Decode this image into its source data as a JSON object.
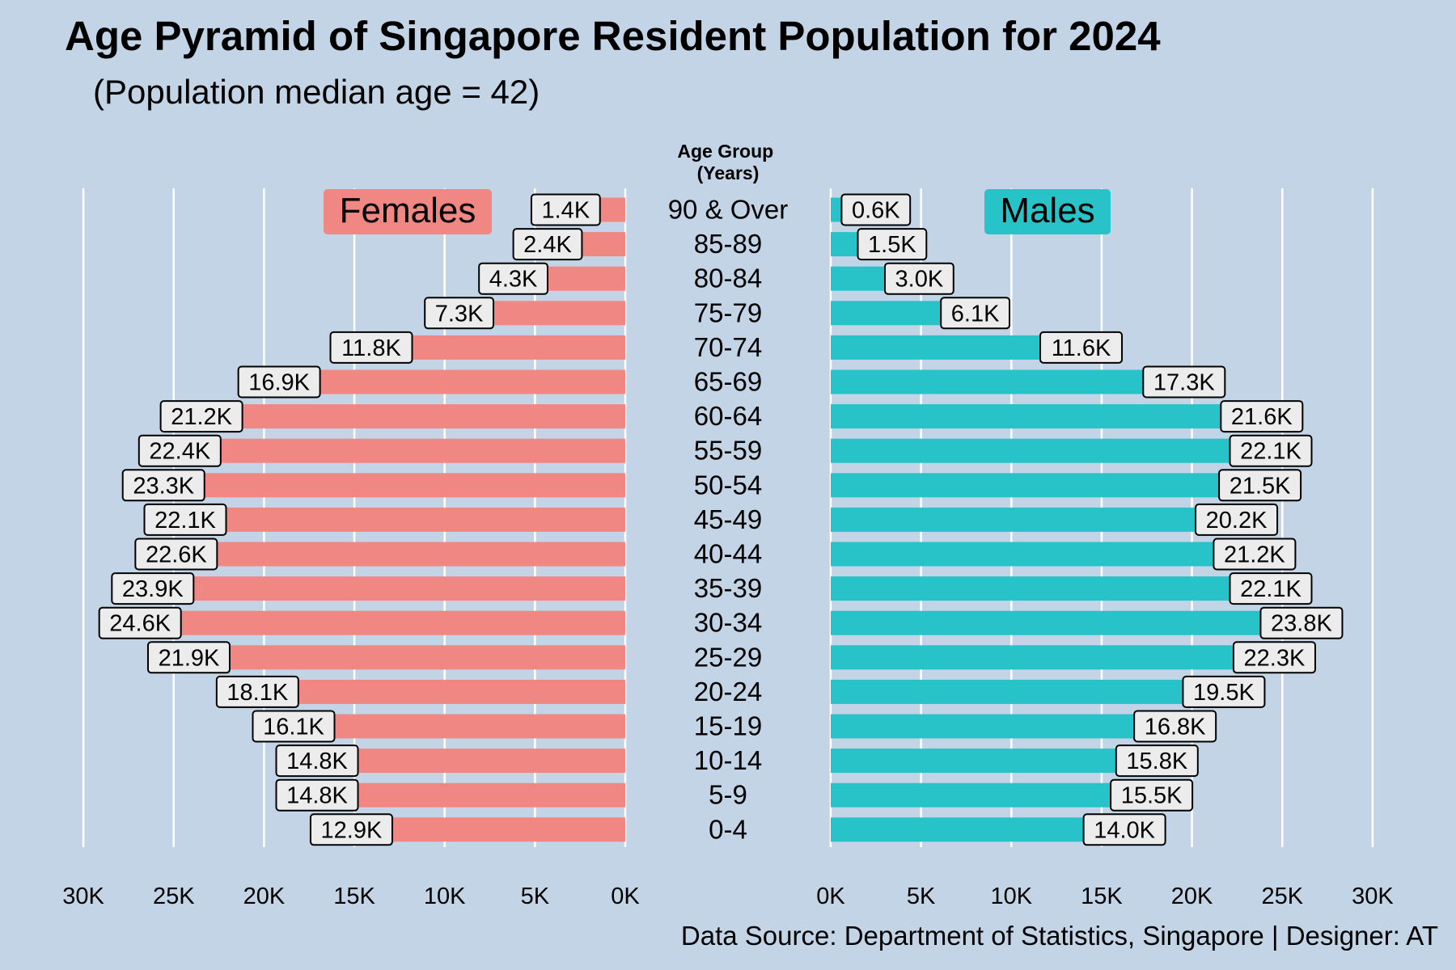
{
  "chart_data": {
    "type": "bar",
    "title": "Age Pyramid of Singapore Resident Population for 2024",
    "subtitle": "(Population median age = 42)",
    "axis_title": "Age Group\n(Years)",
    "caption": "Data Source: Department of Statistics, Singapore | Designer: AT",
    "categories": [
      "90 & Over",
      "85-89",
      "80-84",
      "75-79",
      "70-74",
      "65-69",
      "60-64",
      "55-59",
      "50-54",
      "45-49",
      "40-44",
      "35-39",
      "30-34",
      "25-29",
      "20-24",
      "15-19",
      "10-14",
      "5-9",
      "0-4"
    ],
    "series": [
      {
        "name": "Females",
        "color": "#f08783",
        "values": [
          1.4,
          2.4,
          4.3,
          7.3,
          11.8,
          16.9,
          21.2,
          22.4,
          23.3,
          22.1,
          22.6,
          23.9,
          24.6,
          21.9,
          18.1,
          16.1,
          14.8,
          14.8,
          12.9
        ],
        "labels": [
          "1.4K",
          "2.4K",
          "4.3K",
          "7.3K",
          "11.8K",
          "16.9K",
          "21.2K",
          "22.4K",
          "23.3K",
          "22.1K",
          "22.6K",
          "23.9K",
          "24.6K",
          "21.9K",
          "18.1K",
          "16.1K",
          "14.8K",
          "14.8K",
          "12.9K"
        ]
      },
      {
        "name": "Males",
        "color": "#27c3c9",
        "values": [
          0.6,
          1.5,
          3.0,
          6.1,
          11.6,
          17.3,
          21.6,
          22.1,
          21.5,
          20.2,
          21.2,
          22.1,
          23.8,
          22.3,
          19.5,
          16.8,
          15.8,
          15.5,
          14.0
        ],
        "labels": [
          "0.6K",
          "1.5K",
          "3.0K",
          "6.1K",
          "11.6K",
          "17.3K",
          "21.6K",
          "22.1K",
          "21.5K",
          "20.2K",
          "21.2K",
          "22.1K",
          "23.8K",
          "22.3K",
          "19.5K",
          "16.8K",
          "15.8K",
          "15.5K",
          "14.0K"
        ]
      }
    ],
    "value_unit": "K",
    "xlim": [
      0,
      30
    ],
    "ticks": [
      0,
      5,
      10,
      15,
      20,
      25,
      30
    ],
    "tick_labels": [
      "0K",
      "5K",
      "10K",
      "15K",
      "20K",
      "25K",
      "30K"
    ],
    "grid": true,
    "legend_placement": "top, beside the two halves",
    "background_color": "#c3d4e6",
    "gridline_color": "#ffffff"
  }
}
